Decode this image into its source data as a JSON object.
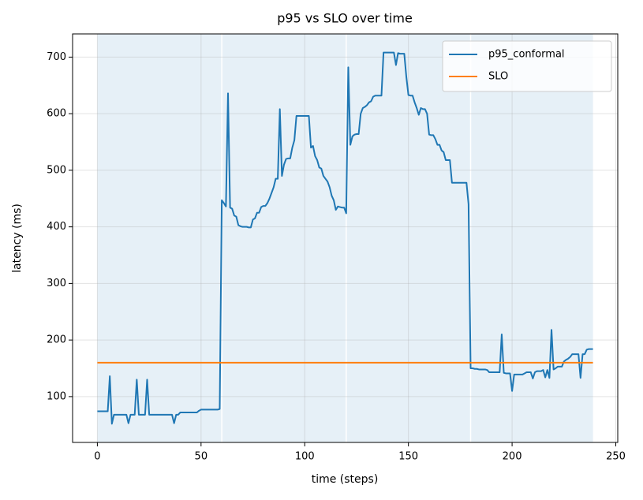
{
  "chart_data": {
    "type": "line",
    "title": "p95 vs SLO over time",
    "x_label": "time (steps)",
    "y_label": "latency (ms)",
    "x": [
      0,
      1,
      2,
      3,
      4,
      5,
      6,
      7,
      8,
      9,
      10,
      11,
      12,
      13,
      14,
      15,
      16,
      17,
      18,
      19,
      20,
      21,
      22,
      23,
      24,
      25,
      26,
      27,
      28,
      29,
      30,
      31,
      32,
      33,
      34,
      35,
      36,
      37,
      38,
      39,
      40,
      41,
      42,
      43,
      44,
      45,
      46,
      47,
      48,
      49,
      50,
      51,
      52,
      53,
      54,
      55,
      56,
      57,
      58,
      59,
      60,
      61,
      62,
      63,
      64,
      65,
      66,
      67,
      68,
      69,
      70,
      71,
      72,
      73,
      74,
      75,
      76,
      77,
      78,
      79,
      80,
      81,
      82,
      83,
      84,
      85,
      86,
      87,
      88,
      89,
      90,
      91,
      92,
      93,
      94,
      95,
      96,
      97,
      98,
      99,
      100,
      101,
      102,
      103,
      104,
      105,
      106,
      107,
      108,
      109,
      110,
      111,
      112,
      113,
      114,
      115,
      116,
      117,
      118,
      119,
      120,
      121,
      122,
      123,
      124,
      125,
      126,
      127,
      128,
      129,
      130,
      131,
      132,
      133,
      134,
      135,
      136,
      137,
      138,
      139,
      140,
      141,
      142,
      143,
      144,
      145,
      146,
      147,
      148,
      149,
      150,
      151,
      152,
      153,
      154,
      155,
      156,
      157,
      158,
      159,
      160,
      161,
      162,
      163,
      164,
      165,
      166,
      167,
      168,
      169,
      170,
      171,
      172,
      173,
      174,
      175,
      176,
      177,
      178,
      179,
      180,
      181,
      182,
      183,
      184,
      185,
      186,
      187,
      188,
      189,
      190,
      191,
      192,
      193,
      194,
      195,
      196,
      197,
      198,
      199,
      200,
      201,
      202,
      203,
      204,
      205,
      206,
      207,
      208,
      209,
      210,
      211,
      212,
      213,
      214,
      215,
      216,
      217,
      218,
      219,
      220,
      221,
      222,
      223,
      224,
      225,
      226,
      227,
      228,
      229,
      230,
      231,
      232,
      233,
      234,
      235,
      236,
      237,
      238,
      239
    ],
    "series": [
      {
        "name": "p95_conformal",
        "color": "#1f77b4",
        "values": [
          74,
          74,
          74,
          74,
          74,
          74,
          136,
          52,
          68,
          68,
          68,
          68,
          68,
          68,
          68,
          53,
          68,
          68,
          68,
          130,
          68,
          68,
          68,
          68,
          130,
          68,
          68,
          68,
          68,
          68,
          68,
          68,
          68,
          68,
          68,
          68,
          68,
          53,
          68,
          68,
          72,
          72,
          72,
          72,
          72,
          72,
          72,
          72,
          72,
          75,
          77,
          77,
          77,
          77,
          77,
          77,
          77,
          77,
          77,
          78,
          447,
          442,
          436,
          636,
          434,
          432,
          420,
          418,
          403,
          401,
          400,
          400,
          400,
          399,
          399,
          413,
          415,
          425,
          425,
          435,
          437,
          437,
          442,
          450,
          460,
          470,
          485,
          485,
          608,
          490,
          510,
          520,
          521,
          521,
          540,
          553,
          596,
          596,
          596,
          596,
          596,
          596,
          596,
          540,
          543,
          525,
          518,
          505,
          503,
          490,
          485,
          480,
          470,
          455,
          447,
          430,
          436,
          435,
          434,
          434,
          424,
          682,
          545,
          560,
          563,
          564,
          564,
          600,
          610,
          612,
          615,
          620,
          622,
          630,
          632,
          632,
          632,
          632,
          708,
          708,
          708,
          708,
          708,
          708,
          686,
          707,
          706,
          706,
          706,
          665,
          633,
          632,
          632,
          620,
          610,
          598,
          610,
          608,
          608,
          600,
          563,
          562,
          562,
          555,
          545,
          545,
          535,
          532,
          518,
          518,
          518,
          478,
          478,
          478,
          478,
          478,
          478,
          478,
          478,
          440,
          150,
          150,
          149,
          149,
          148,
          148,
          148,
          148,
          147,
          143,
          143,
          143,
          143,
          143,
          143,
          210,
          142,
          141,
          141,
          141,
          110,
          139,
          139,
          139,
          139,
          139,
          141,
          143,
          143,
          143,
          132,
          143,
          145,
          145,
          145,
          147,
          134,
          147,
          133,
          218,
          148,
          150,
          153,
          153,
          153,
          162,
          165,
          167,
          170,
          175,
          175,
          175,
          175,
          133,
          175,
          175,
          183,
          184,
          184,
          184
        ]
      },
      {
        "name": "SLO",
        "color": "#ff7f0e",
        "x": [
          0,
          239
        ],
        "values": [
          160,
          160
        ]
      }
    ],
    "shaded_spans": [
      [
        0,
        60
      ],
      [
        60,
        120
      ],
      [
        120,
        180
      ],
      [
        180,
        239
      ]
    ],
    "span_color": "#1f77b4",
    "xlim": [
      -11.95,
      250.95
    ],
    "ylim": [
      19,
      741
    ],
    "xticks": [
      0,
      50,
      100,
      150,
      200,
      250
    ],
    "yticks": [
      100,
      200,
      300,
      400,
      500,
      600,
      700
    ],
    "grid": true,
    "legend": "upper-right"
  }
}
